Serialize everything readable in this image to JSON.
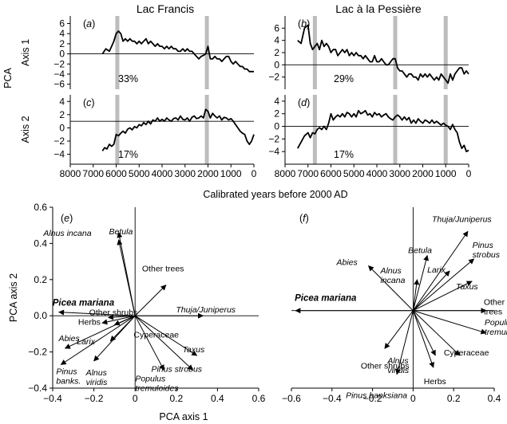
{
  "figure": {
    "column_titles": [
      "Lac Francis",
      "Lac à la Pessière"
    ],
    "time_axis_label": "Calibrated years before 2000 AD",
    "pca_row_label": "PCA"
  },
  "chart_data": [
    {
      "id": "a",
      "type": "line",
      "panel_label": "(a)",
      "ylabel": "Axis 1",
      "lake": "Lac Francis",
      "variance_label": "33%",
      "xlim": [
        8000,
        0
      ],
      "ylim": [
        -7,
        7.5
      ],
      "xticks": [
        8000,
        7000,
        6000,
        5000,
        4000,
        3000,
        2000,
        1000,
        0
      ],
      "yticks": [
        6,
        4,
        2,
        0,
        -2,
        -4,
        -6
      ],
      "zone_boundaries": [
        5950,
        2050
      ],
      "reference_y": 0,
      "x": [
        6600,
        6450,
        6300,
        6200,
        6100,
        6000,
        5900,
        5800,
        5700,
        5600,
        5500,
        5400,
        5300,
        5200,
        5100,
        5000,
        4900,
        4800,
        4700,
        4600,
        4500,
        4400,
        4300,
        4200,
        4100,
        4000,
        3900,
        3800,
        3700,
        3600,
        3500,
        3400,
        3300,
        3200,
        3100,
        3000,
        2900,
        2800,
        2700,
        2600,
        2500,
        2400,
        2300,
        2200,
        2100,
        2000,
        1900,
        1800,
        1700,
        1600,
        1500,
        1400,
        1300,
        1200,
        1100,
        1000,
        900,
        800,
        700,
        600,
        500,
        400,
        300,
        200,
        100,
        0
      ],
      "y": [
        0,
        1,
        0.5,
        1.5,
        2.5,
        4,
        4.5,
        4,
        2.5,
        3,
        2.5,
        3,
        2.5,
        2.5,
        2,
        2.5,
        2,
        2.5,
        3,
        2,
        2.5,
        2,
        1.5,
        2,
        1.5,
        1.5,
        1,
        1.5,
        1,
        1.5,
        1,
        1,
        0.5,
        0.5,
        1,
        0.5,
        1,
        0.5,
        0.5,
        0,
        -0.5,
        -1,
        -0.5,
        -0.3,
        0,
        1.5,
        -1,
        -1,
        -0.5,
        -1,
        -1,
        -1.5,
        -1,
        -0.5,
        -0.5,
        -1.5,
        -2,
        -1.5,
        -2,
        -2.5,
        -2.5,
        -3,
        -3,
        -3.5,
        -3.5,
        -3.5
      ]
    },
    {
      "id": "b",
      "type": "line",
      "panel_label": "(b)",
      "ylabel": "",
      "lake": "Lac à la Pessière",
      "variance_label": "29%",
      "xlim": [
        8000,
        0
      ],
      "ylim": [
        -4,
        8
      ],
      "xticks": [
        8000,
        7000,
        6000,
        5000,
        4000,
        3000,
        2000,
        1000,
        0
      ],
      "yticks": [
        6,
        4,
        2,
        0,
        -2
      ],
      "zone_boundaries": [
        6700,
        3200,
        1000
      ],
      "reference_y": 0,
      "x": [
        7450,
        7300,
        7150,
        7000,
        6900,
        6800,
        6700,
        6600,
        6500,
        6400,
        6300,
        6200,
        6100,
        6000,
        5900,
        5800,
        5700,
        5600,
        5500,
        5400,
        5300,
        5200,
        5100,
        5000,
        4900,
        4800,
        4700,
        4600,
        4500,
        4400,
        4300,
        4200,
        4100,
        4000,
        3900,
        3800,
        3700,
        3600,
        3500,
        3400,
        3300,
        3200,
        3100,
        3000,
        2900,
        2800,
        2700,
        2600,
        2500,
        2400,
        2300,
        2200,
        2100,
        2000,
        1900,
        1800,
        1700,
        1600,
        1500,
        1400,
        1300,
        1200,
        1100,
        1000,
        900,
        800,
        700,
        600,
        500,
        400,
        300,
        200,
        100,
        0
      ],
      "y": [
        4,
        3.5,
        6,
        6.5,
        3.5,
        2.5,
        3,
        3.5,
        2.5,
        4,
        3,
        3.5,
        3,
        2,
        2.5,
        2.5,
        1.5,
        2,
        2.5,
        2,
        2.5,
        1.5,
        2,
        1.5,
        2,
        1.5,
        1.5,
        1,
        1.5,
        1,
        0.5,
        0.5,
        1.5,
        0.5,
        0.5,
        1,
        0.5,
        0,
        0,
        0.5,
        1,
        1,
        -0.5,
        -1,
        -1,
        -1.5,
        -2,
        -1.5,
        -1.5,
        -2,
        -2,
        -2.5,
        -1.5,
        -2,
        -1.5,
        -2,
        -1.5,
        -2,
        -2.5,
        -2,
        -2.5,
        -1.5,
        -2,
        -2.5,
        -3,
        -1.5,
        -2.5,
        -1.5,
        -1,
        -0.5,
        -0.5,
        -1.5,
        -1,
        -1.5
      ]
    },
    {
      "id": "c",
      "type": "line",
      "panel_label": "(c)",
      "ylabel": "Axis 2",
      "lake": "Lac Francis",
      "variance_label": "17%",
      "xlim": [
        8000,
        0
      ],
      "ylim": [
        -5.5,
        5
      ],
      "xticks": [
        8000,
        7000,
        6000,
        5000,
        4000,
        3000,
        2000,
        1000,
        0
      ],
      "yticks": [
        4,
        2,
        0,
        -2,
        -4
      ],
      "zone_boundaries": [
        5950,
        2050
      ],
      "reference_y": 1,
      "x": [
        6600,
        6500,
        6400,
        6300,
        6200,
        6100,
        6000,
        5900,
        5800,
        5700,
        5600,
        5500,
        5400,
        5300,
        5200,
        5100,
        5000,
        4900,
        4800,
        4700,
        4600,
        4500,
        4400,
        4300,
        4200,
        4100,
        4000,
        3900,
        3800,
        3700,
        3600,
        3500,
        3400,
        3300,
        3200,
        3100,
        3000,
        2900,
        2800,
        2700,
        2600,
        2500,
        2400,
        2300,
        2200,
        2100,
        2000,
        1900,
        1800,
        1700,
        1600,
        1500,
        1400,
        1300,
        1200,
        1100,
        1000,
        900,
        800,
        700,
        600,
        500,
        400,
        300,
        200,
        100,
        0
      ],
      "y": [
        -3.5,
        -3,
        -3.2,
        -2.5,
        -2.8,
        -2.5,
        -1,
        -1.2,
        -0.8,
        -0.5,
        -0.8,
        -0.2,
        0,
        -0.3,
        0.2,
        0,
        0.5,
        0.3,
        0.8,
        0.5,
        1,
        0.6,
        1.2,
        1,
        1.5,
        1,
        1.3,
        1,
        1.5,
        1.2,
        1,
        1.4,
        1.5,
        1.2,
        1.8,
        1.3,
        1.2,
        1.5,
        1,
        1.6,
        1.8,
        1.4,
        1.5,
        1.8,
        1.5,
        2.8,
        2.5,
        1.5,
        2.2,
        1.8,
        1.5,
        1.8,
        1.2,
        1.6,
        1.5,
        1.2,
        1.4,
        1,
        0.5,
        0,
        -0.5,
        -0.8,
        -1,
        -2,
        -2.5,
        -2,
        -1
      ]
    },
    {
      "id": "d",
      "type": "line",
      "panel_label": "(d)",
      "ylabel": "",
      "lake": "Lac à la Pessière",
      "variance_label": "17%",
      "xlim": [
        8000,
        0
      ],
      "ylim": [
        -6,
        5
      ],
      "xticks": [
        8000,
        7000,
        6000,
        5000,
        4000,
        3000,
        2000,
        1000,
        0
      ],
      "yticks": [
        4,
        2,
        0,
        -2,
        -4
      ],
      "zone_boundaries": [
        6700,
        3200,
        1000
      ],
      "reference_y": 0,
      "x": [
        7450,
        7300,
        7150,
        7000,
        6900,
        6800,
        6700,
        6600,
        6500,
        6400,
        6300,
        6200,
        6100,
        6000,
        5900,
        5800,
        5700,
        5600,
        5500,
        5400,
        5300,
        5200,
        5100,
        5000,
        4900,
        4800,
        4700,
        4600,
        4500,
        4400,
        4300,
        4200,
        4100,
        4000,
        3900,
        3800,
        3700,
        3600,
        3500,
        3400,
        3300,
        3200,
        3100,
        3000,
        2900,
        2800,
        2700,
        2600,
        2500,
        2400,
        2300,
        2200,
        2100,
        2000,
        1900,
        1800,
        1700,
        1600,
        1500,
        1400,
        1300,
        1200,
        1100,
        1000,
        900,
        800,
        700,
        600,
        500,
        400,
        300,
        200,
        100,
        0
      ],
      "y": [
        -3.5,
        -2.5,
        -1.5,
        -1,
        -1.8,
        -1,
        -1.2,
        -0.5,
        -0.2,
        -0.5,
        0,
        -0.5,
        0.5,
        2,
        1,
        1.5,
        1.8,
        1.5,
        2,
        1.5,
        2.2,
        2,
        1.5,
        2,
        1.5,
        2.5,
        2,
        2.2,
        2.5,
        1.8,
        2,
        1.5,
        2.2,
        1.8,
        2,
        1.5,
        1.8,
        2,
        1.5,
        1.2,
        1,
        1.5,
        1.8,
        1.5,
        1,
        1.5,
        1,
        1.4,
        0.5,
        1,
        0.5,
        1.2,
        0.8,
        0.5,
        1,
        0.8,
        0.5,
        1,
        0.5,
        0.8,
        0.5,
        0.2,
        0.5,
        0.2,
        0,
        -0.5,
        0.3,
        -0.5,
        -1,
        -2.5,
        -3.5,
        -3,
        -4,
        -3.8
      ]
    },
    {
      "id": "e",
      "type": "scatter",
      "subtype": "biplot",
      "panel_label": "(e)",
      "lake": "Lac Francis",
      "xlabel": "PCA axis 1",
      "ylabel": "PCA axis 2",
      "xlim": [
        -0.4,
        0.6
      ],
      "ylim": [
        -0.4,
        0.6
      ],
      "xticks": [
        -0.4,
        -0.2,
        0,
        0.2,
        0.4,
        0.6
      ],
      "yticks": [
        0.6,
        0.4,
        0.2,
        0.0,
        -0.2,
        -0.4
      ],
      "vectors": [
        {
          "label": "Betula",
          "x": -0.08,
          "y": 0.46,
          "italic": true,
          "bold": false
        },
        {
          "label": "Alnus incana",
          "x": -0.08,
          "y": 0.42,
          "italic": true,
          "bold": false
        },
        {
          "label": "Other trees",
          "x": 0.15,
          "y": 0.17,
          "italic": false,
          "bold": false
        },
        {
          "label": "Thuja/Juniperus",
          "x": 0.33,
          "y": 0.0,
          "italic": true,
          "bold": false
        },
        {
          "label": "Picea mariana",
          "x": -0.37,
          "y": 0.02,
          "italic": true,
          "bold": true
        },
        {
          "label": "Other shrubs",
          "x": -0.13,
          "y": -0.01,
          "italic": false,
          "bold": false
        },
        {
          "label": "Herbs",
          "x": -0.16,
          "y": -0.04,
          "italic": false,
          "bold": false
        },
        {
          "label": "Abies",
          "x": -0.34,
          "y": -0.18,
          "italic": true,
          "bold": false
        },
        {
          "label": "Cyperaceae",
          "x": -0.1,
          "y": -0.05,
          "italic": false,
          "bold": false
        },
        {
          "label": "Larix",
          "x": -0.12,
          "y": -0.14,
          "italic": true,
          "bold": false
        },
        {
          "label": "Pinus banks.",
          "x": -0.36,
          "y": -0.27,
          "italic": true,
          "bold": false
        },
        {
          "label": "Alnus viridis",
          "x": -0.2,
          "y": -0.25,
          "italic": true,
          "bold": false
        },
        {
          "label": "Populus tremuloides",
          "x": 0.14,
          "y": -0.3,
          "italic": true,
          "bold": false
        },
        {
          "label": "Taxus",
          "x": 0.3,
          "y": -0.22,
          "italic": true,
          "bold": false
        },
        {
          "label": "Pinus strobus",
          "x": 0.28,
          "y": -0.3,
          "italic": true,
          "bold": false
        }
      ]
    },
    {
      "id": "f",
      "type": "scatter",
      "subtype": "biplot",
      "panel_label": "(f)",
      "lake": "Lac à la Pessière",
      "xlabel": "",
      "ylabel": "",
      "xlim": [
        -0.6,
        0.4
      ],
      "ylim": [
        -0.45,
        0.6
      ],
      "xticks": [
        -0.6,
        -0.4,
        -0.2,
        0,
        0.2,
        0.4
      ],
      "vectors": [
        {
          "label": "Thuja/Juniperus",
          "x": 0.27,
          "y": 0.46,
          "italic": true,
          "bold": false
        },
        {
          "label": "Pinus strobus",
          "x": 0.3,
          "y": 0.3,
          "italic": true,
          "bold": false
        },
        {
          "label": "Betula",
          "x": 0.07,
          "y": 0.32,
          "italic": true,
          "bold": false
        },
        {
          "label": "Abies",
          "x": -0.22,
          "y": 0.26,
          "italic": true,
          "bold": false
        },
        {
          "label": "Alnus incana",
          "x": 0.02,
          "y": 0.18,
          "italic": true,
          "bold": false
        },
        {
          "label": "Larix",
          "x": 0.18,
          "y": 0.23,
          "italic": true,
          "bold": false
        },
        {
          "label": "Taxus",
          "x": 0.29,
          "y": 0.17,
          "italic": true,
          "bold": false
        },
        {
          "label": "Picea mariana",
          "x": -0.58,
          "y": 0.0,
          "italic": true,
          "bold": true
        },
        {
          "label": "Other trees",
          "x": 0.36,
          "y": 0.0,
          "italic": false,
          "bold": false
        },
        {
          "label": "Populus tremuloides",
          "x": 0.36,
          "y": -0.13,
          "italic": true,
          "bold": false
        },
        {
          "label": "Other shrubs",
          "x": -0.14,
          "y": -0.22,
          "italic": false,
          "bold": false
        },
        {
          "label": "Cyperaceae",
          "x": 0.23,
          "y": -0.26,
          "italic": false,
          "bold": false
        },
        {
          "label": "Alnus viridis",
          "x": 0.11,
          "y": -0.26,
          "italic": true,
          "bold": false
        },
        {
          "label": "Herbs",
          "x": 0.1,
          "y": -0.33,
          "italic": false,
          "bold": false
        },
        {
          "label": "Pinus banksiana",
          "x": -0.08,
          "y": -0.37,
          "italic": true,
          "bold": false
        }
      ]
    }
  ]
}
